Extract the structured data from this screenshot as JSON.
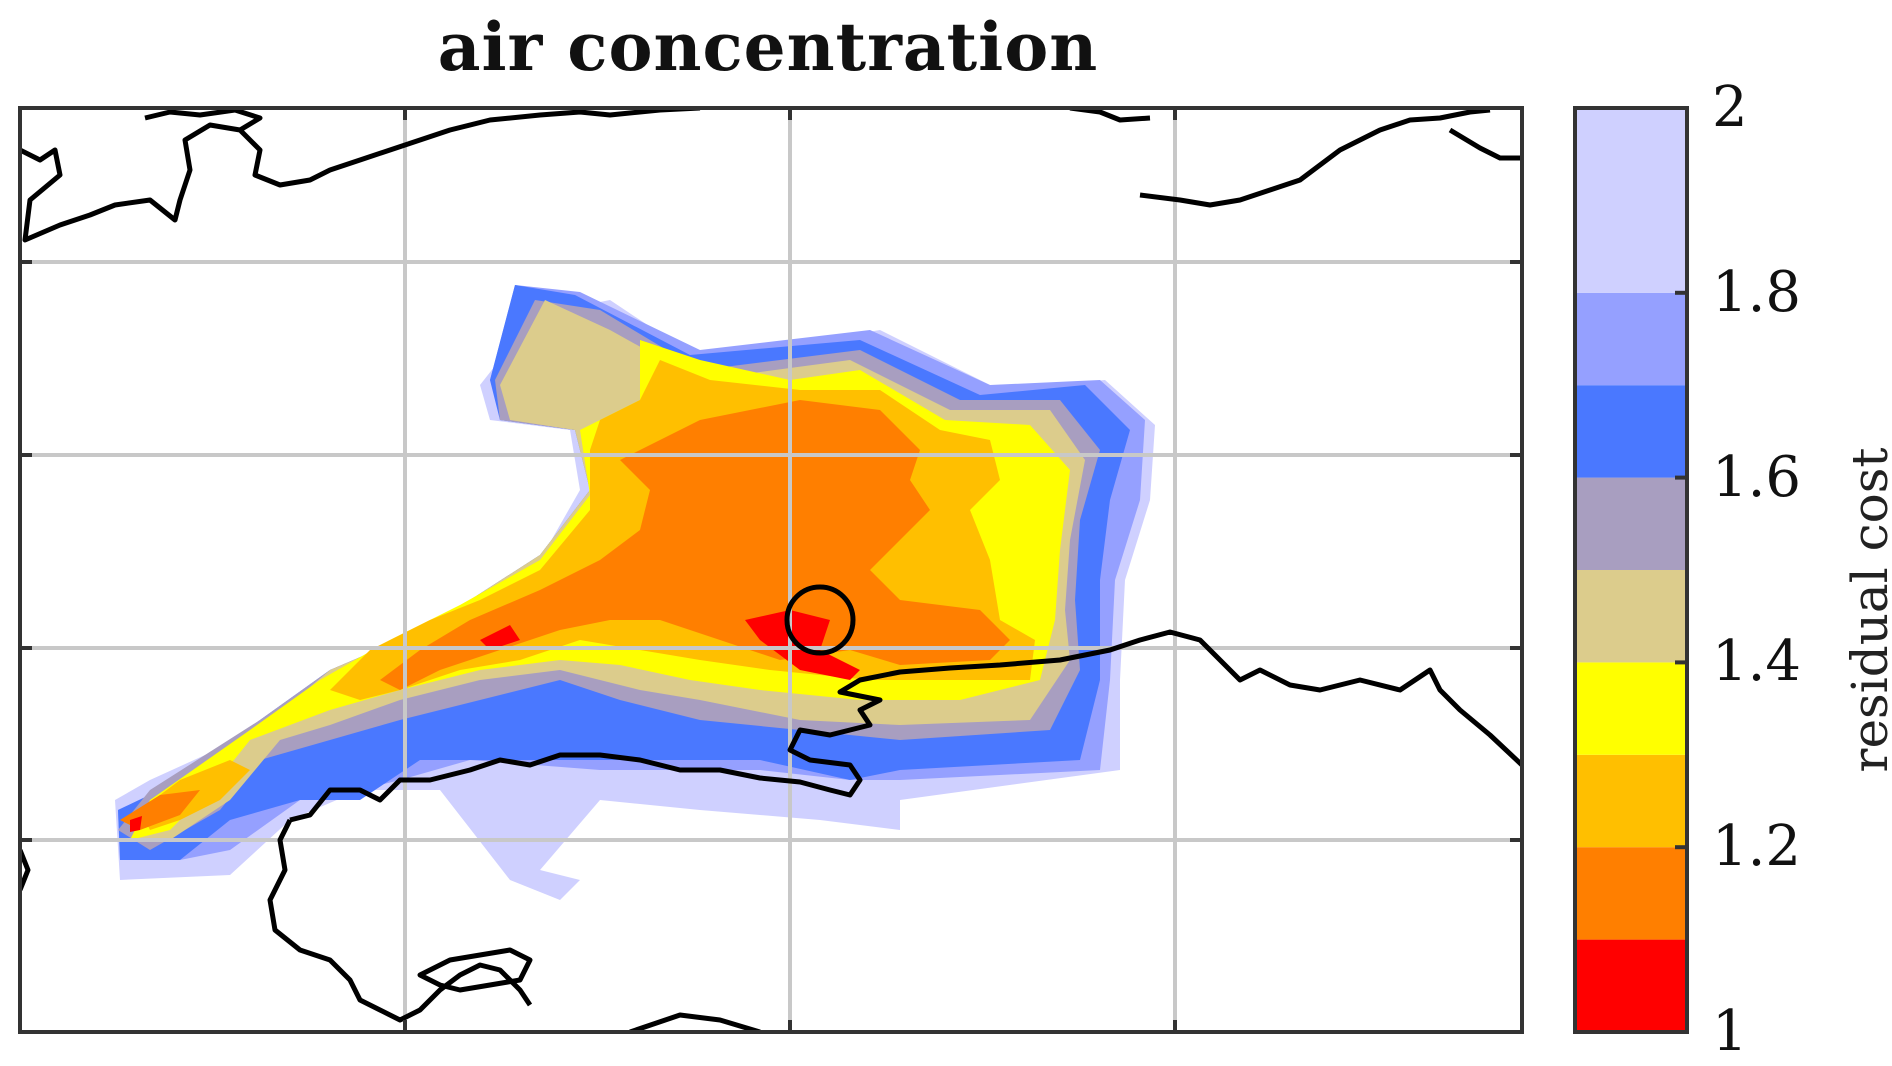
{
  "title": "air concentration",
  "colorbar": {
    "label": "residual cost",
    "tick_labels": [
      "2",
      "1.8",
      "1.6",
      "1.4",
      "1.2",
      "1"
    ],
    "range": [
      1,
      2
    ],
    "levels": [
      {
        "from": 1.0,
        "to": 1.1,
        "color": "#ff0000"
      },
      {
        "from": 1.1,
        "to": 1.2,
        "color": "#ff7f00"
      },
      {
        "from": 1.2,
        "to": 1.3,
        "color": "#ffbf00"
      },
      {
        "from": 1.3,
        "to": 1.4,
        "color": "#ffff00"
      },
      {
        "from": 1.4,
        "to": 1.5,
        "color": "#dccc8c"
      },
      {
        "from": 1.5,
        "to": 1.6,
        "color": "#a89ec0"
      },
      {
        "from": 1.6,
        "to": 1.7,
        "color": "#4a78ff"
      },
      {
        "from": 1.7,
        "to": 1.8,
        "color": "#95a0ff"
      },
      {
        "from": 1.8,
        "to": 2.0,
        "color": "#cfd0ff"
      }
    ]
  },
  "map": {
    "gridlines": true,
    "source_marker": "black circle"
  }
}
